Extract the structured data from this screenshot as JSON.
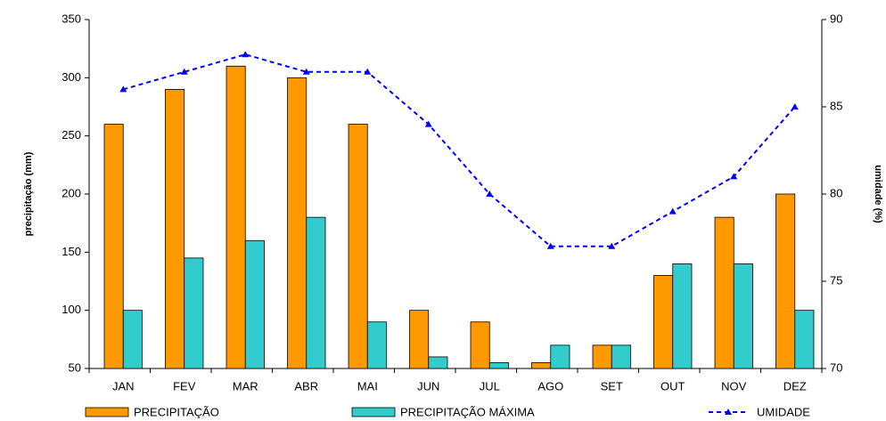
{
  "chart_data": {
    "type": "bar",
    "categories": [
      "JAN",
      "FEV",
      "MAR",
      "ABR",
      "MAI",
      "JUN",
      "JUL",
      "AGO",
      "SET",
      "OUT",
      "NOV",
      "DEZ"
    ],
    "series": [
      {
        "name": "PRECIPITAÇÃO",
        "color": "#ff9900",
        "values": [
          260,
          290,
          310,
          300,
          260,
          100,
          90,
          55,
          70,
          130,
          180,
          200
        ]
      },
      {
        "name": "PRECIPITAÇÃO MÁXIMA",
        "color": "#33cccc",
        "values": [
          100,
          145,
          160,
          180,
          90,
          60,
          55,
          70,
          70,
          140,
          140,
          100
        ]
      },
      {
        "name": "UMIDADE",
        "color": "#0000ff",
        "type": "line",
        "axis": "y2",
        "values": [
          86,
          87,
          88,
          87,
          87,
          84,
          80,
          77,
          77,
          79,
          81,
          85
        ]
      }
    ],
    "ylabel": "precipitação (mm)",
    "y2label": "umidade (%)",
    "ylim": [
      50,
      350
    ],
    "yticks": [
      50,
      100,
      150,
      200,
      250,
      300,
      350
    ],
    "y2lim": [
      70,
      90
    ],
    "y2ticks": [
      70,
      75,
      80,
      85,
      90
    ],
    "grid": false,
    "legend": "bottom"
  }
}
